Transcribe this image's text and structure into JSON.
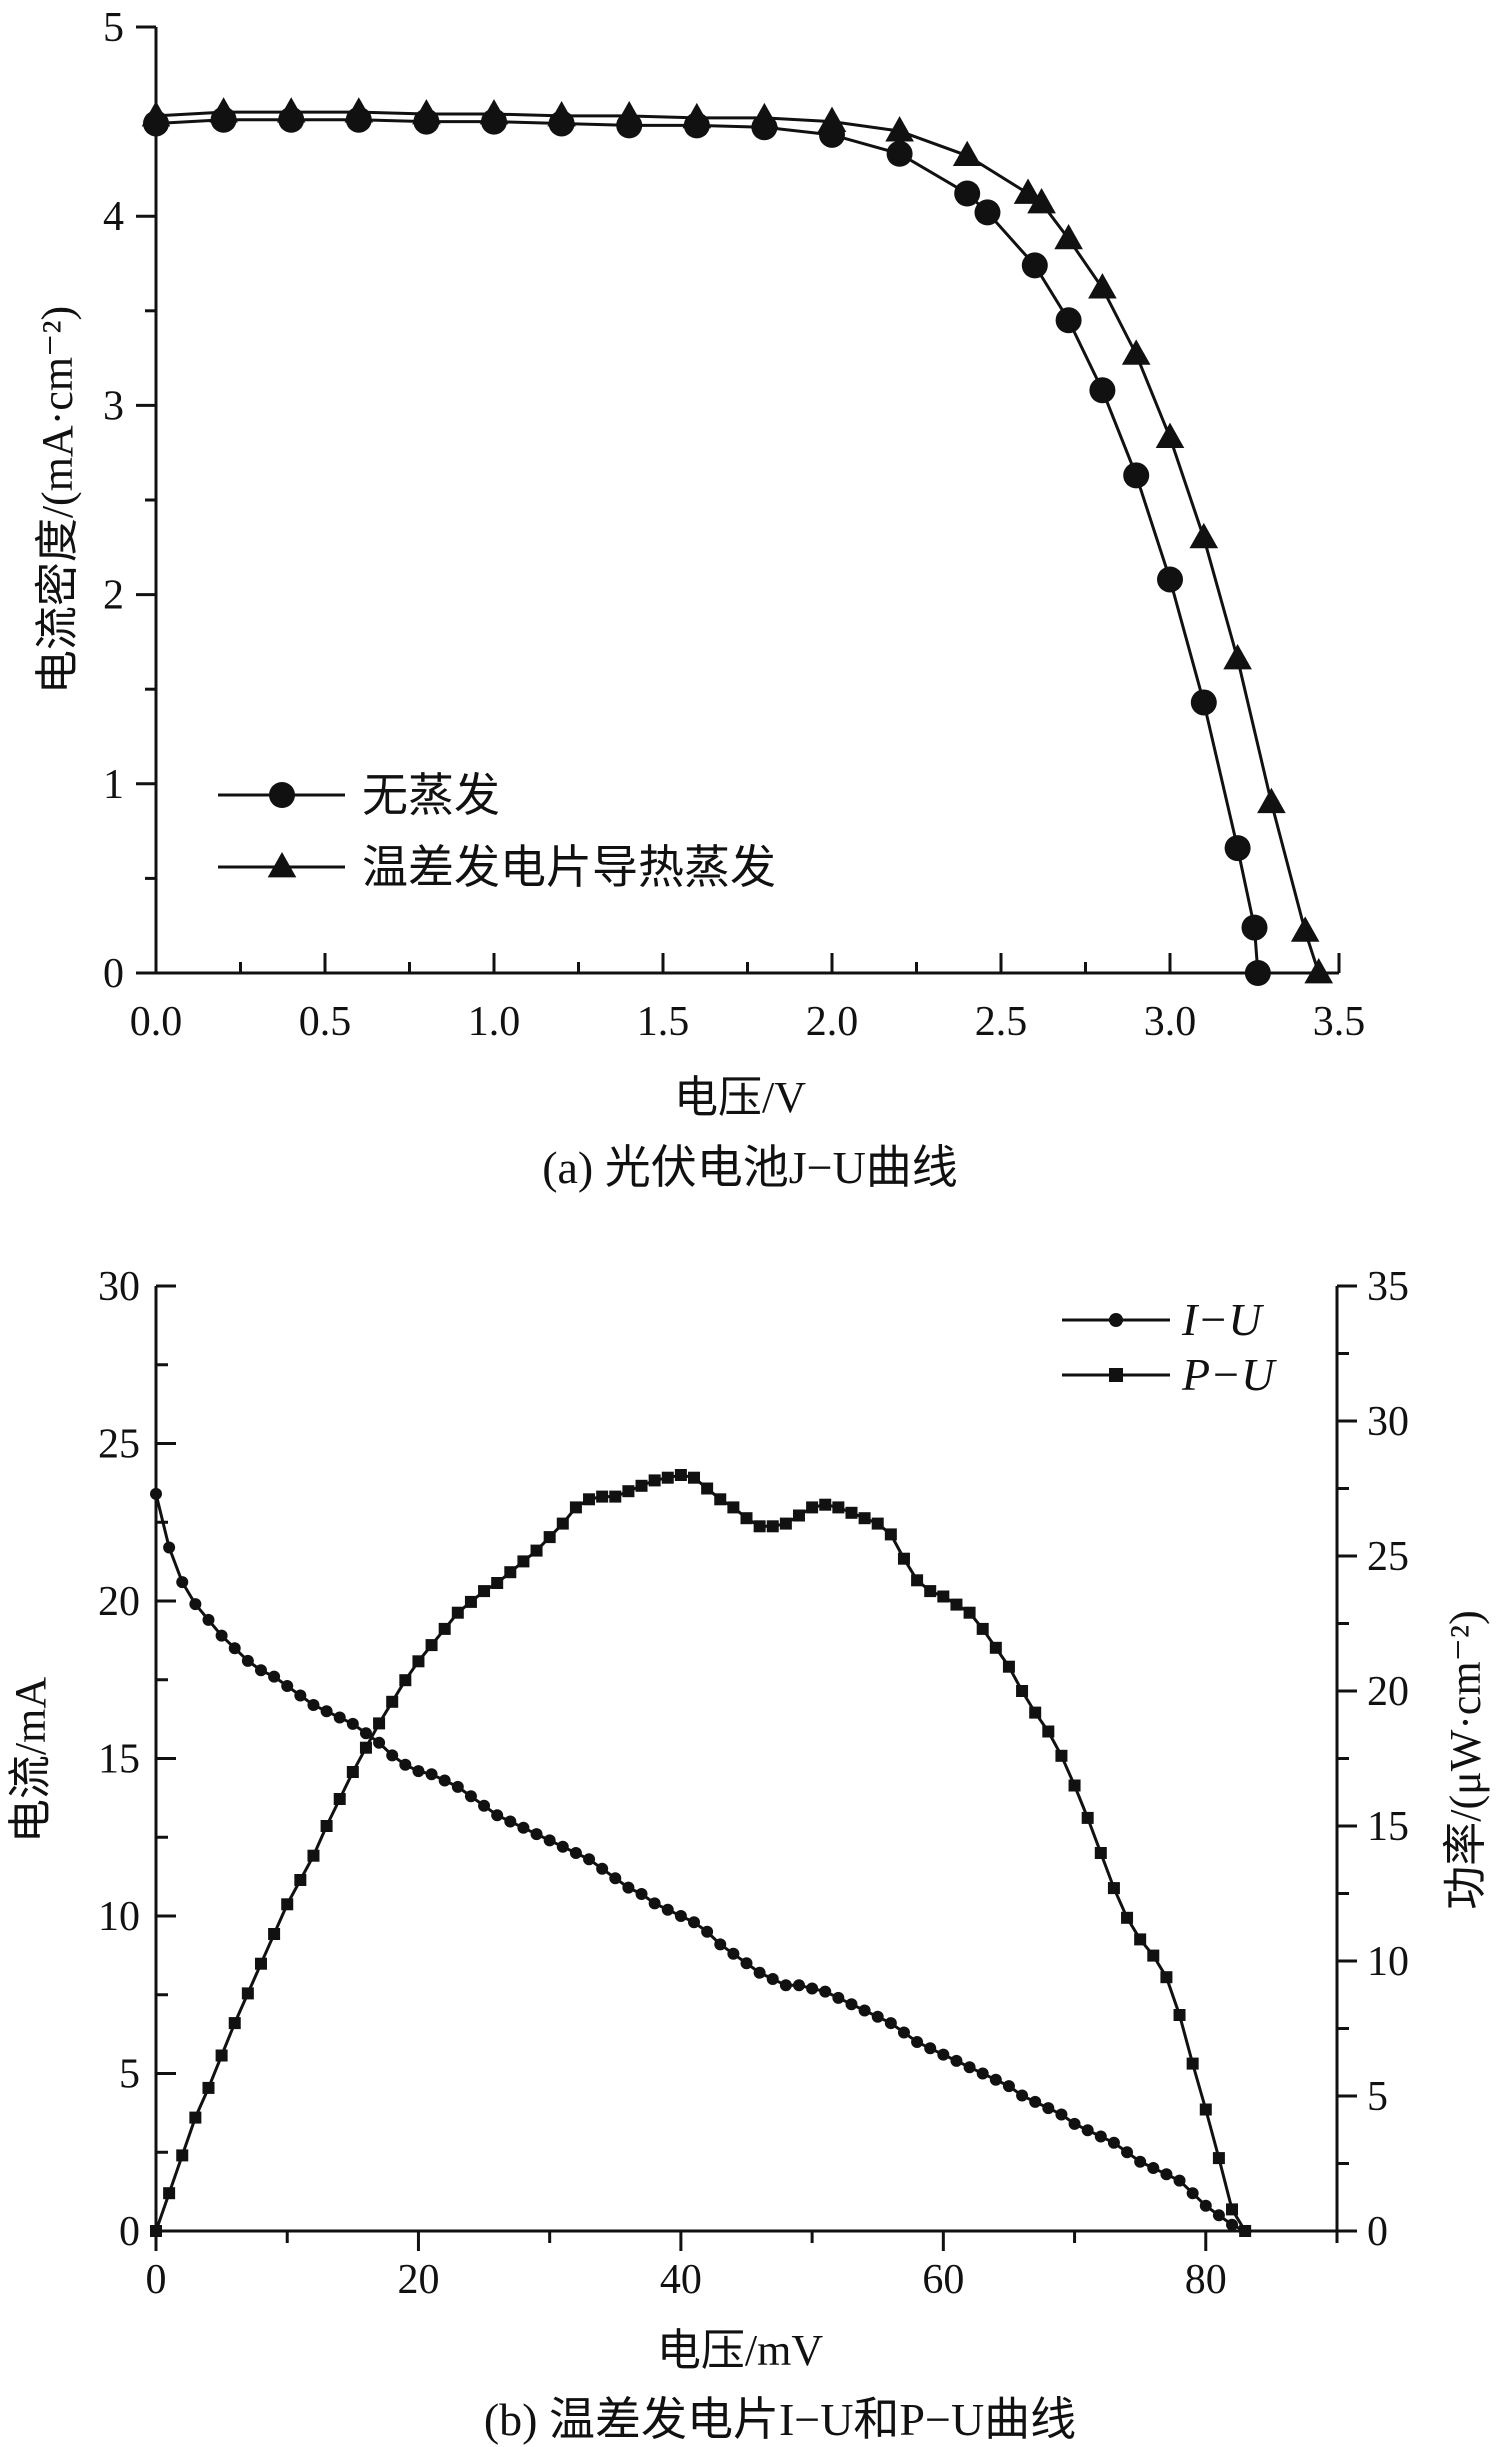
{
  "chart_data": [
    {
      "type": "line",
      "caption": "(a) 光伏电池J−U曲线",
      "xlabel": "电压/V",
      "ylabel": "电流密度/(mA·cm⁻²)",
      "xlim": [
        0,
        3.5
      ],
      "ylim": [
        0,
        5
      ],
      "xticks": [
        "0.0",
        "0.5",
        "1.0",
        "1.5",
        "2.0",
        "2.5",
        "3.0",
        "3.5"
      ],
      "yticks": [
        "0",
        "1",
        "2",
        "3",
        "4",
        "5"
      ],
      "legend_position": "bottom-left",
      "series": [
        {
          "name": "无蒸发",
          "marker": "circle",
          "x": [
            0,
            0.2,
            0.4,
            0.6,
            0.8,
            1.0,
            1.2,
            1.4,
            1.6,
            1.8,
            2.0,
            2.2,
            2.4,
            2.46,
            2.6,
            2.7,
            2.8,
            2.9,
            3.0,
            3.1,
            3.2,
            3.25,
            3.26
          ],
          "y": [
            4.49,
            4.51,
            4.51,
            4.51,
            4.5,
            4.5,
            4.49,
            4.48,
            4.48,
            4.47,
            4.43,
            4.33,
            4.12,
            4.02,
            3.74,
            3.45,
            3.08,
            2.63,
            2.08,
            1.43,
            0.66,
            0.24,
            0.0
          ]
        },
        {
          "name": "温差发电片导热蒸发",
          "marker": "triangle",
          "x": [
            0,
            0.2,
            0.4,
            0.6,
            0.8,
            1.0,
            1.2,
            1.4,
            1.6,
            1.8,
            2.0,
            2.2,
            2.4,
            2.58,
            2.62,
            2.7,
            2.8,
            2.9,
            3.0,
            3.1,
            3.2,
            3.3,
            3.4,
            3.44
          ],
          "y": [
            4.53,
            4.55,
            4.55,
            4.55,
            4.54,
            4.54,
            4.53,
            4.53,
            4.52,
            4.52,
            4.5,
            4.45,
            4.32,
            4.12,
            4.07,
            3.88,
            3.62,
            3.27,
            2.83,
            2.3,
            1.66,
            0.9,
            0.22,
            0.0
          ]
        }
      ]
    },
    {
      "type": "line",
      "caption": "(b)  温差发电片I−U和P−U曲线",
      "xlabel": "电压/mV",
      "ylabel": "电流/mA",
      "ylabel_right": "功率/(μW·cm⁻²)",
      "xlim": [
        0,
        90
      ],
      "ylim": [
        0,
        30
      ],
      "ylim_right": [
        0,
        35
      ],
      "xticks": [
        "0",
        "20",
        "40",
        "60",
        "80"
      ],
      "yticks": [
        "0",
        "5",
        "10",
        "15",
        "20",
        "25",
        "30"
      ],
      "yticks_right": [
        "0",
        "5",
        "10",
        "15",
        "20",
        "25",
        "30",
        "35"
      ],
      "legend_position": "top-right",
      "series": [
        {
          "name": "I−U",
          "marker": "circle",
          "axis": "left",
          "x_start": 0,
          "x_step": 1,
          "y": [
            23.4,
            21.7,
            20.6,
            19.9,
            19.4,
            18.9,
            18.5,
            18.1,
            17.8,
            17.6,
            17.3,
            17.0,
            16.7,
            16.5,
            16.3,
            16.1,
            15.8,
            15.5,
            15.1,
            14.8,
            14.6,
            14.5,
            14.3,
            14.1,
            13.8,
            13.5,
            13.2,
            13.0,
            12.8,
            12.6,
            12.4,
            12.2,
            12.0,
            11.8,
            11.5,
            11.2,
            10.9,
            10.7,
            10.4,
            10.2,
            10.0,
            9.8,
            9.5,
            9.1,
            8.8,
            8.5,
            8.2,
            8.0,
            7.8,
            7.8,
            7.7,
            7.6,
            7.4,
            7.2,
            7.0,
            6.8,
            6.6,
            6.3,
            6.0,
            5.8,
            5.6,
            5.4,
            5.2,
            5.0,
            4.8,
            4.6,
            4.3,
            4.1,
            3.9,
            3.7,
            3.4,
            3.2,
            3.0,
            2.8,
            2.5,
            2.2,
            2.0,
            1.8,
            1.6,
            1.2,
            0.8,
            0.5,
            0.2,
            0.0
          ]
        },
        {
          "name": "P−U",
          "marker": "square",
          "axis": "right",
          "x_start": 0,
          "x_step": 1,
          "y": [
            0,
            1.4,
            2.8,
            4.2,
            5.3,
            6.5,
            7.7,
            8.8,
            9.9,
            11.0,
            12.1,
            13.0,
            13.9,
            15.0,
            16.0,
            17.0,
            17.9,
            18.8,
            19.6,
            20.4,
            21.1,
            21.7,
            22.3,
            22.9,
            23.3,
            23.7,
            24.0,
            24.4,
            24.8,
            25.2,
            25.7,
            26.2,
            26.8,
            27.1,
            27.2,
            27.2,
            27.4,
            27.6,
            27.8,
            27.9,
            28.0,
            27.9,
            27.5,
            27.1,
            26.8,
            26.4,
            26.1,
            26.1,
            26.2,
            26.5,
            26.8,
            26.9,
            26.8,
            26.6,
            26.4,
            26.2,
            25.8,
            24.9,
            24.1,
            23.7,
            23.5,
            23.2,
            22.9,
            22.3,
            21.6,
            20.9,
            20.0,
            19.2,
            18.5,
            17.6,
            16.5,
            15.3,
            14.0,
            12.7,
            11.6,
            10.8,
            10.2,
            9.4,
            8.0,
            6.2,
            4.5,
            2.7,
            0.8,
            0.0
          ]
        }
      ]
    }
  ]
}
